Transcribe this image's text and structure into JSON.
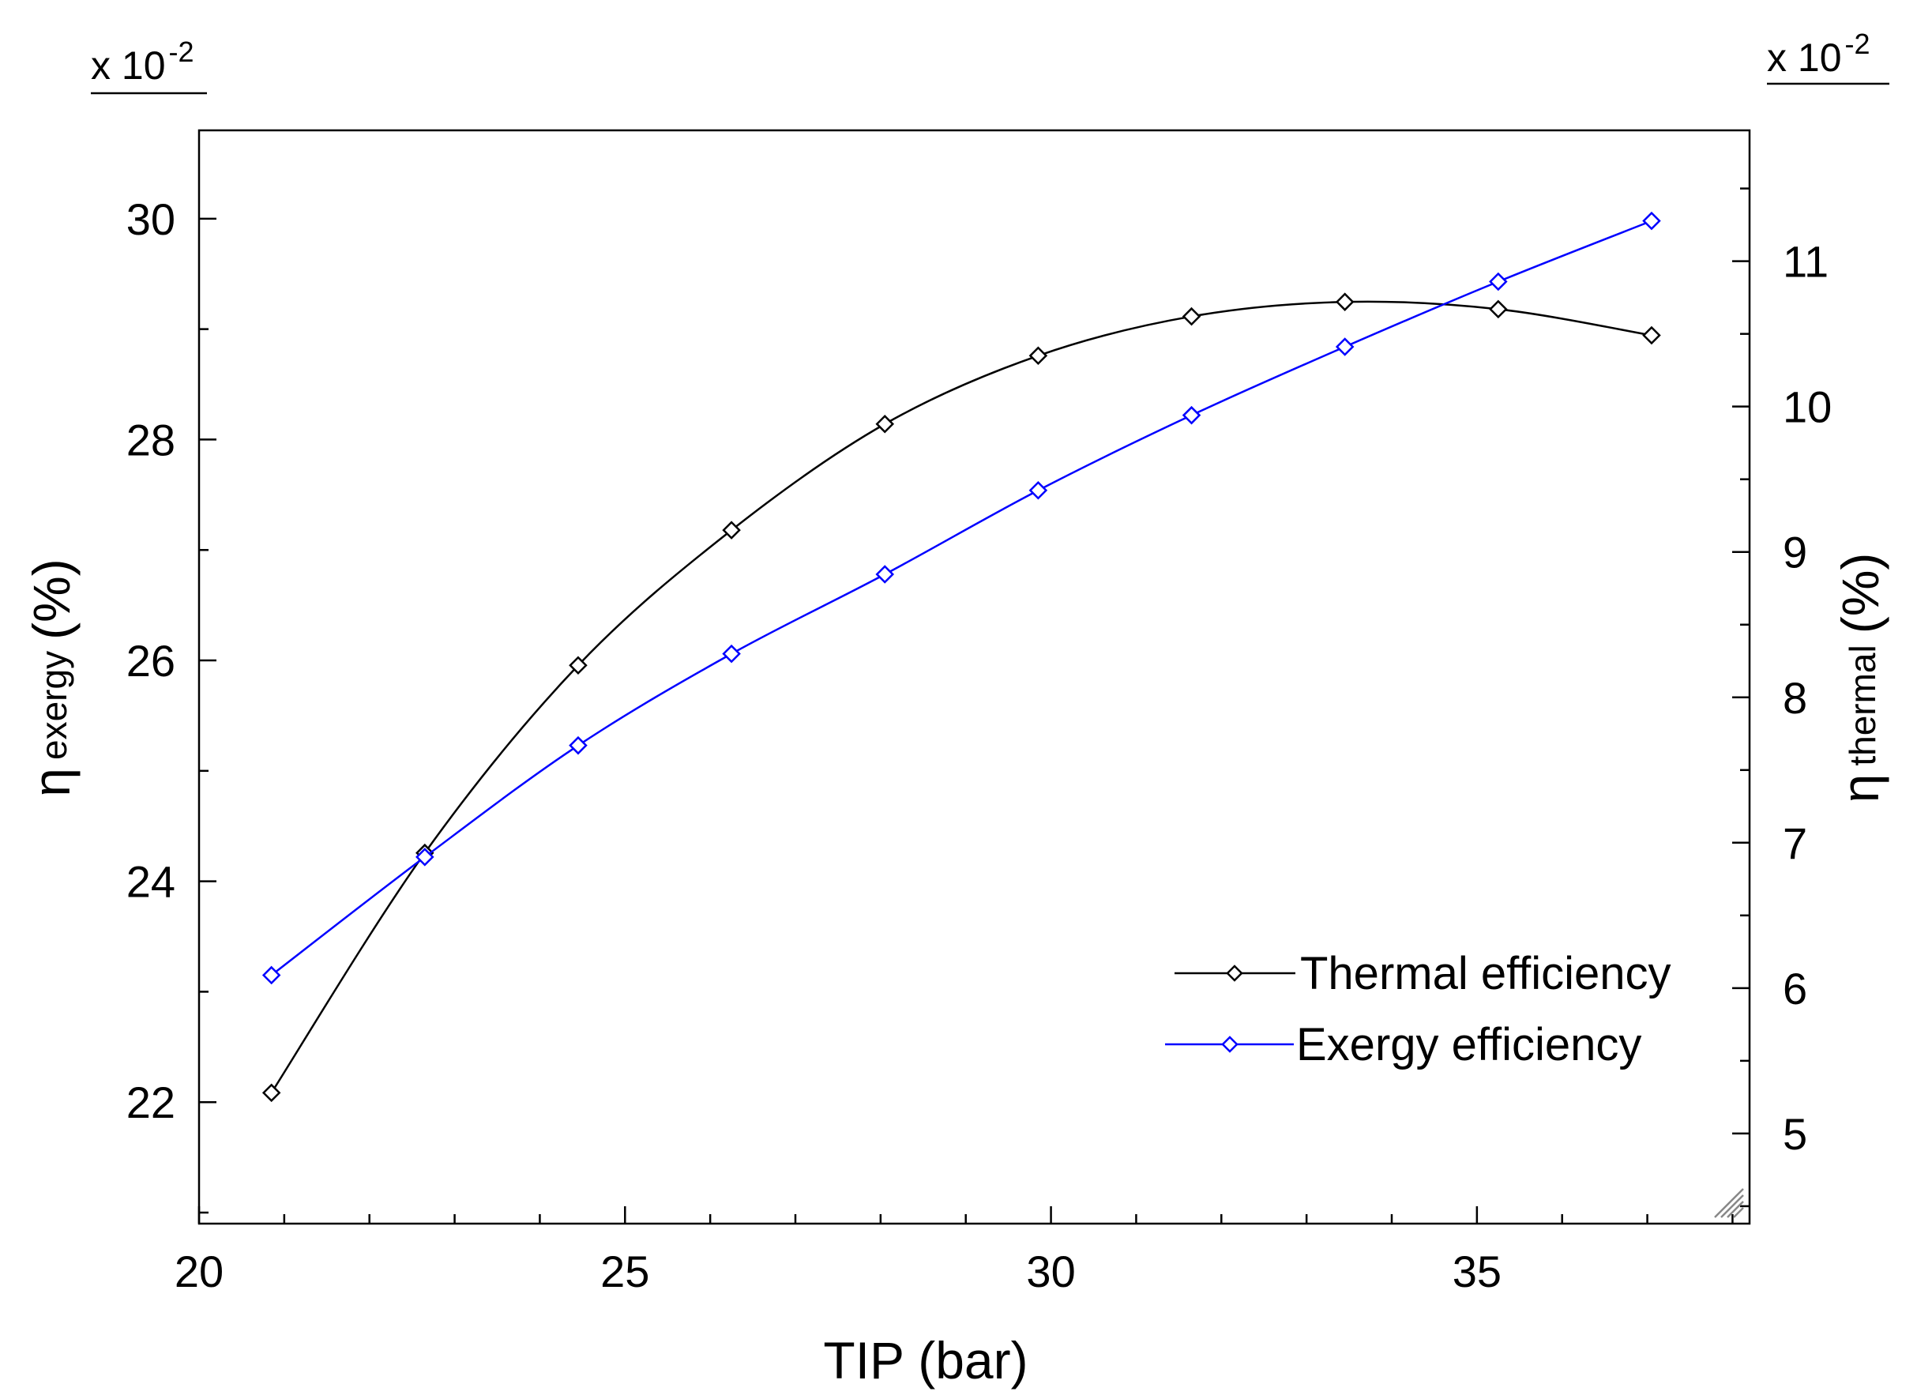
{
  "chart_data": {
    "type": "line",
    "title": "",
    "xlabel": "TIP (bar)",
    "xlim": [
      20,
      38.2
    ],
    "x_ticks": [
      20,
      25,
      30,
      35
    ],
    "left_axis": {
      "label_symbol": "η",
      "label_sub": "exergy",
      "label_unit": "(%)",
      "ylim": [
        20.9,
        30.8
      ],
      "ticks": [
        22,
        24,
        26,
        28,
        30
      ],
      "multiplier_base": "x 10",
      "multiplier_exp": "-2"
    },
    "right_axis": {
      "label_symbol": "η",
      "label_sub": "thermal",
      "label_unit": "(%)",
      "ylim": [
        4.38,
        11.9
      ],
      "ticks": [
        5,
        6,
        7,
        8,
        9,
        10,
        11
      ],
      "multiplier_base": "x 10",
      "multiplier_exp": "-2"
    },
    "x": [
      20.85,
      22.65,
      24.45,
      26.25,
      28.05,
      29.85,
      31.65,
      33.45,
      35.25,
      37.05
    ],
    "series": [
      {
        "name": "Thermal efficiency",
        "axis": "right",
        "color": "#000000",
        "values": [
          5.28,
          6.93,
          8.22,
          9.15,
          9.88,
          10.35,
          10.62,
          10.72,
          10.67,
          10.49
        ]
      },
      {
        "name": "Exergy efficiency",
        "axis": "left",
        "color": "#0000ff",
        "values": [
          23.15,
          24.22,
          25.23,
          26.06,
          26.78,
          27.54,
          28.22,
          28.84,
          29.43,
          29.98
        ]
      }
    ],
    "legend_position": "lower-right",
    "grid": false
  }
}
